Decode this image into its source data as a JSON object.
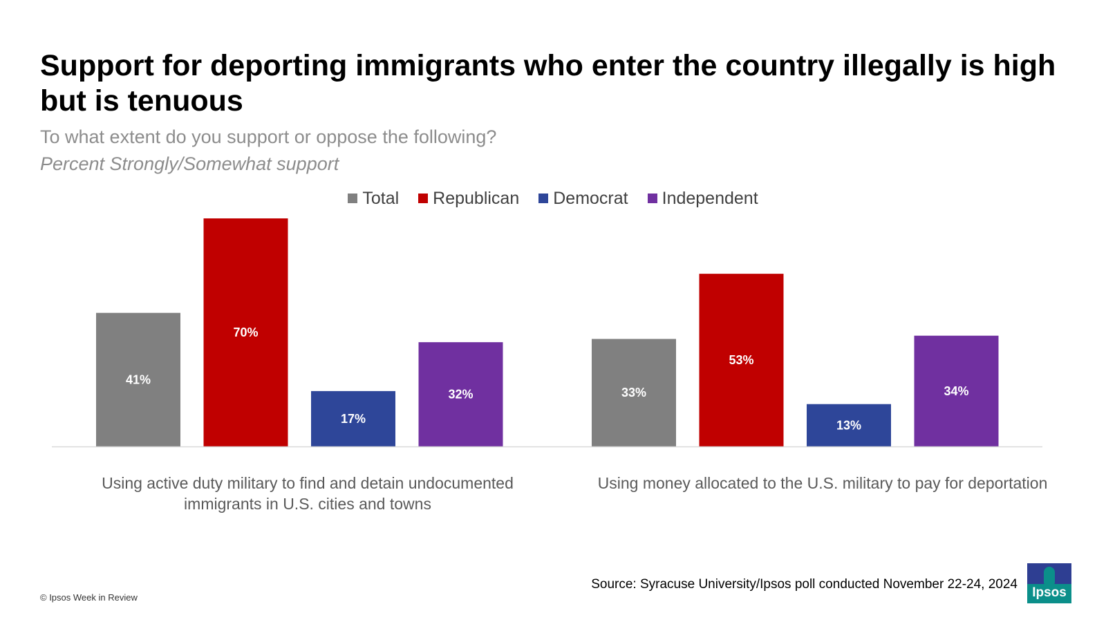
{
  "chart_data": {
    "type": "bar",
    "title": "Support for deporting immigrants who enter the country illegally is high but is tenuous",
    "subtitle": "To what extent do you support or oppose the following?",
    "note": "Percent Strongly/Somewhat support",
    "categories": [
      "Using active duty military to find and detain undocumented immigrants in U.S. cities and towns",
      "Using money allocated to the U.S. military to pay for deportation"
    ],
    "series": [
      {
        "name": "Total",
        "color": "#808080",
        "values": [
          41,
          33
        ]
      },
      {
        "name": "Republican",
        "color": "#c00000",
        "values": [
          70,
          53
        ]
      },
      {
        "name": "Democrat",
        "color": "#2e4699",
        "values": [
          17,
          13
        ]
      },
      {
        "name": "Independent",
        "color": "#7030a0",
        "values": [
          32,
          34
        ]
      }
    ],
    "value_suffix": "%",
    "ylim": [
      0,
      70
    ],
    "legend_position": "top-center",
    "grid": false
  },
  "footer": {
    "source": "Source: Syracuse University/Ipsos poll conducted November 22-24, 2024",
    "copyright": "© Ipsos Week in Review",
    "logo_text": "Ipsos"
  }
}
